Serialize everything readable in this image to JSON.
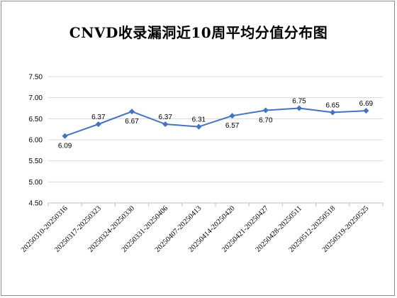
{
  "chart_data": {
    "type": "line",
    "title": "CNVD收录漏洞近10周平均分值分布图",
    "xlabel": "",
    "ylabel": "",
    "categories": [
      "20250310-20250316",
      "20250317-20250323",
      "20250324-20250330",
      "20250331-20250406",
      "20250407-20250413",
      "20250414-20250420",
      "20250421-20250427",
      "20250428-20250511",
      "20250512-20250518",
      "20250519-20250525"
    ],
    "values": [
      6.09,
      6.37,
      6.67,
      6.37,
      6.31,
      6.57,
      6.7,
      6.75,
      6.65,
      6.69
    ],
    "value_labels": [
      "6.09",
      "6.37",
      "6.67",
      "6.37",
      "6.31",
      "6.57",
      "6.70",
      "6.75",
      "6.65",
      "6.69"
    ],
    "ylim": [
      4.5,
      7.5
    ],
    "yticks": [
      "4.50",
      "5.00",
      "5.50",
      "6.00",
      "6.50",
      "7.00",
      "7.50"
    ],
    "grid": true,
    "legend": "none",
    "line_color": "#4472C4",
    "grid_color": "#d9d9d9",
    "axis_color": "#bfbfbf"
  }
}
